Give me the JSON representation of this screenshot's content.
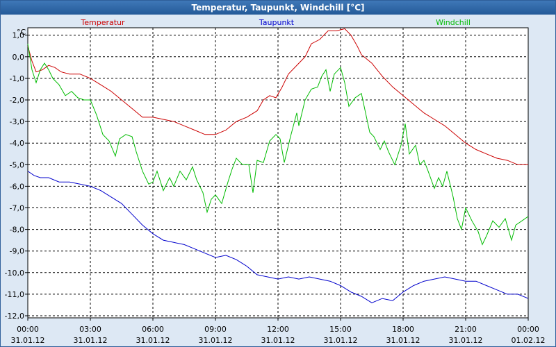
{
  "window": {
    "title": "Temperatur, Taupunkt, Windchill [°C]"
  },
  "chart_data": {
    "type": "line",
    "title": "Temperatur, Taupunkt, Windchill [°C]",
    "ylabel": "°C",
    "ylim": [
      -12,
      2
    ],
    "grid": true,
    "legend_position": "top",
    "y_ticks": [
      "1,0",
      "0,0",
      "-1,0",
      "-2,0",
      "-3,0",
      "-4,0",
      "-5,0",
      "-6,0",
      "-7,0",
      "-8,0",
      "-9,0",
      "-10,0",
      "-11,0",
      "-12,0"
    ],
    "x_ticks": [
      {
        "time": "00:00",
        "date": "31.01.12"
      },
      {
        "time": "03:00",
        "date": "31.01.12"
      },
      {
        "time": "06:00",
        "date": "31.01.12"
      },
      {
        "time": "09:00",
        "date": "31.01.12"
      },
      {
        "time": "12:00",
        "date": "31.01.12"
      },
      {
        "time": "15:00",
        "date": "31.01.12"
      },
      {
        "time": "18:00",
        "date": "31.01.12"
      },
      {
        "time": "21:00",
        "date": "31.01.12"
      },
      {
        "time": "00:00",
        "date": "01.02.12"
      }
    ],
    "x_unit": "hours since 31.01.12 00:00",
    "series": [
      {
        "name": "Temperatur",
        "color": "#cc0000",
        "points": [
          [
            0,
            0.5
          ],
          [
            0.2,
            -0.2
          ],
          [
            0.4,
            -0.7
          ],
          [
            0.7,
            -0.6
          ],
          [
            1.0,
            -0.4
          ],
          [
            1.3,
            -0.5
          ],
          [
            1.6,
            -0.7
          ],
          [
            2.0,
            -0.8
          ],
          [
            2.5,
            -0.8
          ],
          [
            3.0,
            -1.0
          ],
          [
            3.5,
            -1.3
          ],
          [
            4.0,
            -1.6
          ],
          [
            4.5,
            -2.0
          ],
          [
            5.0,
            -2.4
          ],
          [
            5.5,
            -2.8
          ],
          [
            6.0,
            -2.8
          ],
          [
            6.5,
            -2.9
          ],
          [
            7.0,
            -3.0
          ],
          [
            7.5,
            -3.2
          ],
          [
            8.0,
            -3.4
          ],
          [
            8.5,
            -3.6
          ],
          [
            9.0,
            -3.6
          ],
          [
            9.5,
            -3.4
          ],
          [
            10.0,
            -3.0
          ],
          [
            10.5,
            -2.8
          ],
          [
            11.0,
            -2.5
          ],
          [
            11.3,
            -2.0
          ],
          [
            11.6,
            -1.8
          ],
          [
            11.9,
            -1.9
          ],
          [
            12.2,
            -1.4
          ],
          [
            12.5,
            -0.8
          ],
          [
            13.0,
            -0.3
          ],
          [
            13.3,
            0.0
          ],
          [
            13.6,
            0.6
          ],
          [
            14.0,
            0.8
          ],
          [
            14.4,
            1.2
          ],
          [
            14.8,
            1.2
          ],
          [
            15.2,
            1.3
          ],
          [
            15.5,
            1.0
          ],
          [
            15.8,
            0.5
          ],
          [
            16.0,
            0.1
          ],
          [
            16.5,
            -0.3
          ],
          [
            17.0,
            -0.9
          ],
          [
            17.5,
            -1.4
          ],
          [
            18.0,
            -1.8
          ],
          [
            18.5,
            -2.2
          ],
          [
            19.0,
            -2.6
          ],
          [
            19.5,
            -2.9
          ],
          [
            20.0,
            -3.2
          ],
          [
            20.5,
            -3.6
          ],
          [
            21.0,
            -4.0
          ],
          [
            21.5,
            -4.3
          ],
          [
            22.0,
            -4.5
          ],
          [
            22.5,
            -4.7
          ],
          [
            23.0,
            -4.8
          ],
          [
            23.5,
            -5.0
          ],
          [
            24.0,
            -5.0
          ]
        ]
      },
      {
        "name": "Taupunkt",
        "color": "#0000cc",
        "points": [
          [
            0,
            -5.3
          ],
          [
            0.3,
            -5.5
          ],
          [
            0.6,
            -5.6
          ],
          [
            1.0,
            -5.6
          ],
          [
            1.5,
            -5.8
          ],
          [
            2.0,
            -5.8
          ],
          [
            2.5,
            -5.9
          ],
          [
            3.0,
            -6.0
          ],
          [
            3.5,
            -6.2
          ],
          [
            4.0,
            -6.5
          ],
          [
            4.5,
            -6.8
          ],
          [
            5.0,
            -7.3
          ],
          [
            5.5,
            -7.8
          ],
          [
            6.0,
            -8.2
          ],
          [
            6.5,
            -8.5
          ],
          [
            7.0,
            -8.6
          ],
          [
            7.5,
            -8.7
          ],
          [
            8.0,
            -8.9
          ],
          [
            8.5,
            -9.1
          ],
          [
            9.0,
            -9.3
          ],
          [
            9.5,
            -9.2
          ],
          [
            10.0,
            -9.4
          ],
          [
            10.5,
            -9.7
          ],
          [
            11.0,
            -10.1
          ],
          [
            11.5,
            -10.2
          ],
          [
            12.0,
            -10.3
          ],
          [
            12.5,
            -10.2
          ],
          [
            13.0,
            -10.3
          ],
          [
            13.5,
            -10.2
          ],
          [
            14.0,
            -10.3
          ],
          [
            14.5,
            -10.4
          ],
          [
            15.0,
            -10.6
          ],
          [
            15.5,
            -10.9
          ],
          [
            16.0,
            -11.1
          ],
          [
            16.5,
            -11.4
          ],
          [
            17.0,
            -11.2
          ],
          [
            17.5,
            -11.3
          ],
          [
            18.0,
            -10.9
          ],
          [
            18.5,
            -10.6
          ],
          [
            19.0,
            -10.4
          ],
          [
            19.5,
            -10.3
          ],
          [
            20.0,
            -10.2
          ],
          [
            20.5,
            -10.3
          ],
          [
            21.0,
            -10.4
          ],
          [
            21.5,
            -10.4
          ],
          [
            22.0,
            -10.6
          ],
          [
            22.5,
            -10.8
          ],
          [
            23.0,
            -11.0
          ],
          [
            23.5,
            -11.0
          ],
          [
            24.0,
            -11.2
          ]
        ]
      },
      {
        "name": "Windchill",
        "color": "#00bb00",
        "points": [
          [
            0,
            0.6
          ],
          [
            0.2,
            -0.6
          ],
          [
            0.4,
            -1.2
          ],
          [
            0.6,
            -0.6
          ],
          [
            0.8,
            -0.3
          ],
          [
            1.0,
            -0.6
          ],
          [
            1.2,
            -1.0
          ],
          [
            1.5,
            -1.3
          ],
          [
            1.8,
            -1.8
          ],
          [
            2.1,
            -1.6
          ],
          [
            2.4,
            -1.9
          ],
          [
            2.7,
            -2.0
          ],
          [
            3.0,
            -2.0
          ],
          [
            3.3,
            -2.7
          ],
          [
            3.6,
            -3.6
          ],
          [
            3.9,
            -3.9
          ],
          [
            4.2,
            -4.6
          ],
          [
            4.4,
            -3.8
          ],
          [
            4.7,
            -3.6
          ],
          [
            5.0,
            -3.7
          ],
          [
            5.2,
            -4.4
          ],
          [
            5.5,
            -5.3
          ],
          [
            5.8,
            -5.9
          ],
          [
            6.0,
            -5.8
          ],
          [
            6.2,
            -5.3
          ],
          [
            6.5,
            -6.2
          ],
          [
            6.8,
            -5.6
          ],
          [
            7.0,
            -6.0
          ],
          [
            7.3,
            -5.3
          ],
          [
            7.6,
            -5.7
          ],
          [
            7.9,
            -5.1
          ],
          [
            8.1,
            -5.7
          ],
          [
            8.4,
            -6.3
          ],
          [
            8.6,
            -7.2
          ],
          [
            8.8,
            -6.6
          ],
          [
            9.0,
            -6.4
          ],
          [
            9.3,
            -6.8
          ],
          [
            9.6,
            -5.8
          ],
          [
            9.8,
            -5.2
          ],
          [
            10.0,
            -4.7
          ],
          [
            10.3,
            -5.0
          ],
          [
            10.6,
            -5.0
          ],
          [
            10.8,
            -6.3
          ],
          [
            11.0,
            -4.8
          ],
          [
            11.3,
            -4.9
          ],
          [
            11.6,
            -3.9
          ],
          [
            11.9,
            -3.6
          ],
          [
            12.1,
            -3.8
          ],
          [
            12.3,
            -4.9
          ],
          [
            12.6,
            -3.7
          ],
          [
            12.9,
            -2.6
          ],
          [
            13.0,
            -3.2
          ],
          [
            13.3,
            -2.0
          ],
          [
            13.6,
            -1.5
          ],
          [
            13.9,
            -1.4
          ],
          [
            14.1,
            -0.9
          ],
          [
            14.3,
            -0.6
          ],
          [
            14.5,
            -1.6
          ],
          [
            14.7,
            -0.8
          ],
          [
            15.0,
            -0.5
          ],
          [
            15.2,
            -1.2
          ],
          [
            15.4,
            -2.3
          ],
          [
            15.7,
            -1.9
          ],
          [
            16.0,
            -1.7
          ],
          [
            16.2,
            -2.6
          ],
          [
            16.4,
            -3.5
          ],
          [
            16.6,
            -3.7
          ],
          [
            16.9,
            -4.3
          ],
          [
            17.1,
            -3.9
          ],
          [
            17.3,
            -4.4
          ],
          [
            17.6,
            -5.0
          ],
          [
            17.9,
            -4.1
          ],
          [
            18.1,
            -3.1
          ],
          [
            18.3,
            -4.5
          ],
          [
            18.6,
            -4.1
          ],
          [
            18.8,
            -5.0
          ],
          [
            19.0,
            -4.8
          ],
          [
            19.2,
            -5.3
          ],
          [
            19.5,
            -6.1
          ],
          [
            19.7,
            -5.6
          ],
          [
            19.9,
            -6.0
          ],
          [
            20.1,
            -5.3
          ],
          [
            20.4,
            -6.5
          ],
          [
            20.6,
            -7.5
          ],
          [
            20.8,
            -8.0
          ],
          [
            21.0,
            -7.0
          ],
          [
            21.3,
            -7.6
          ],
          [
            21.6,
            -8.1
          ],
          [
            21.8,
            -8.7
          ],
          [
            22.0,
            -8.3
          ],
          [
            22.3,
            -7.6
          ],
          [
            22.6,
            -7.9
          ],
          [
            22.9,
            -7.5
          ],
          [
            23.2,
            -8.5
          ],
          [
            23.4,
            -7.8
          ],
          [
            23.7,
            -7.6
          ],
          [
            24.0,
            -7.4
          ]
        ]
      }
    ]
  }
}
